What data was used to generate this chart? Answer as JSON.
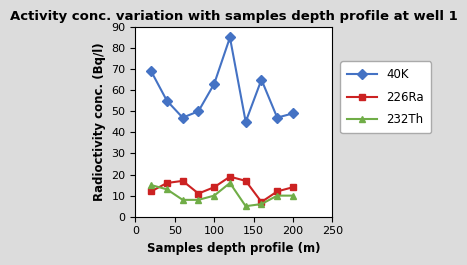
{
  "title": "Activity conc. variation with samples depth profile at well 1",
  "xlabel": "Samples depth profile (m)",
  "ylabel": "Radioctivity conc. (Bq/l)",
  "x": [
    20,
    40,
    60,
    80,
    100,
    120,
    140,
    160,
    180,
    200
  ],
  "40K": [
    69,
    55,
    47,
    50,
    63,
    85,
    45,
    65,
    47,
    49
  ],
  "226Ra": [
    12,
    16,
    17,
    11,
    14,
    19,
    17,
    7,
    12,
    14
  ],
  "232Th": [
    15,
    13,
    8,
    8,
    10,
    16,
    5,
    6,
    10,
    10
  ],
  "40K_color": "#4472c4",
  "226Ra_color": "#cc2222",
  "232Th_color": "#70ad47",
  "xlim": [
    0,
    250
  ],
  "ylim": [
    0,
    90
  ],
  "yticks": [
    0,
    10,
    20,
    30,
    40,
    50,
    60,
    70,
    80,
    90
  ],
  "xticks": [
    0,
    50,
    100,
    150,
    200,
    250
  ],
  "fig_background_color": "#dcdcdc",
  "plot_background_color": "#ffffff",
  "title_fontsize": 9.5,
  "axis_label_fontsize": 8.5,
  "tick_fontsize": 8,
  "legend_fontsize": 8.5
}
